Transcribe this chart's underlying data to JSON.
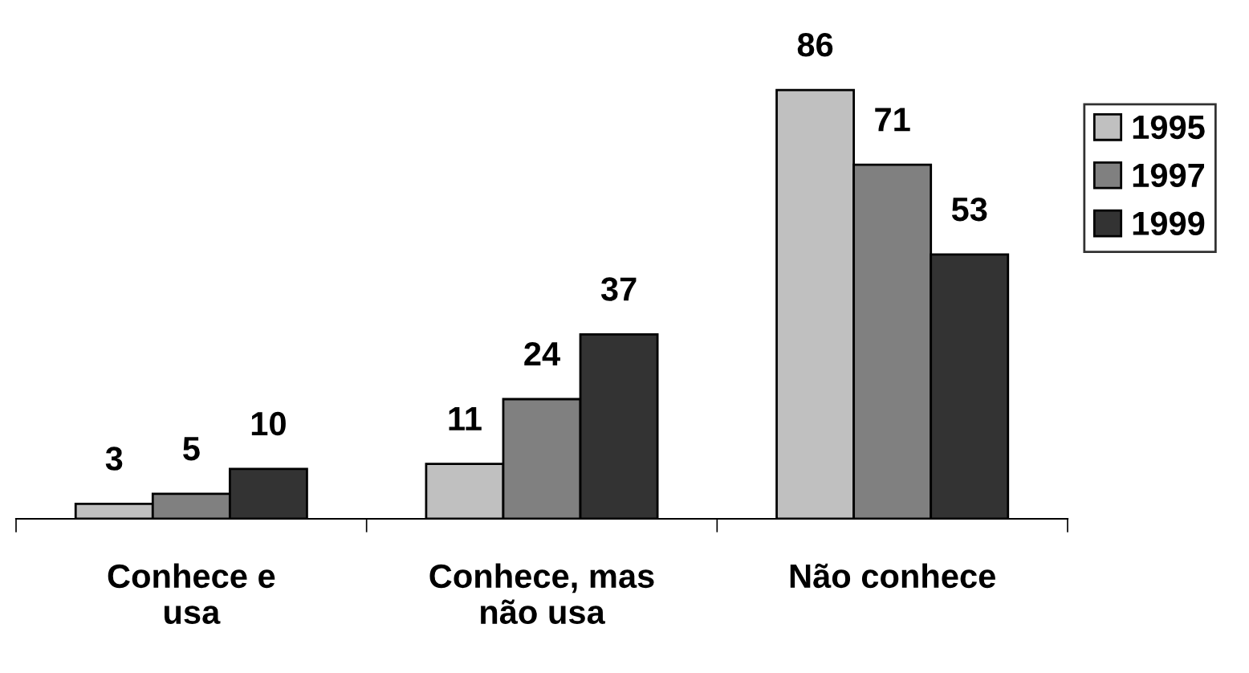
{
  "chart_data": {
    "type": "bar",
    "categories": [
      "Conhece e\nusa",
      "Conhece, mas\nnão usa",
      "Não conhece"
    ],
    "series": [
      {
        "name": "1995",
        "color": "#c0c0c0",
        "values": [
          3,
          11,
          86
        ]
      },
      {
        "name": "1997",
        "color": "#808080",
        "values": [
          5,
          24,
          71
        ]
      },
      {
        "name": "1999",
        "color": "#333333",
        "values": [
          10,
          37,
          53
        ]
      }
    ],
    "data_labels": true,
    "legend": "right",
    "grid": false
  }
}
